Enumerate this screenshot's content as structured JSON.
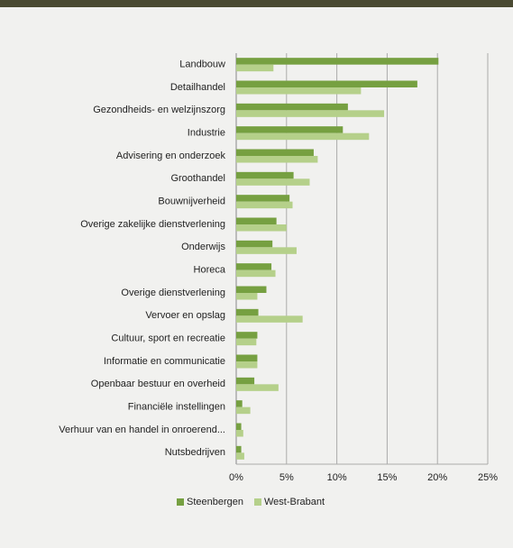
{
  "chart_data": {
    "type": "hbar",
    "categories": [
      "Landbouw",
      "Detailhandel",
      "Gezondheids- en welzijnszorg",
      "Industrie",
      "Advisering en onderzoek",
      "Groothandel",
      "Bouwnijverheid",
      "Overige zakelijke dienstverlening",
      "Onderwijs",
      "Horeca",
      "Overige dienstverlening",
      "Vervoer en opslag",
      "Cultuur, sport en recreatie",
      "Informatie en communicatie",
      "Openbaar bestuur en overheid",
      "Financiële instellingen",
      "Verhuur van en handel in onroerend...",
      "Nutsbedrijven"
    ],
    "series": [
      {
        "name": "Steenbergen",
        "color": "#76a041",
        "values": [
          20.1,
          18.0,
          11.1,
          10.6,
          7.7,
          5.7,
          5.3,
          4.0,
          3.6,
          3.5,
          3.0,
          2.2,
          2.1,
          2.1,
          1.8,
          0.6,
          0.5,
          0.5
        ]
      },
      {
        "name": "West-Brabant",
        "color": "#b5d08a",
        "values": [
          3.7,
          12.4,
          14.7,
          13.2,
          8.1,
          7.3,
          5.6,
          5.0,
          6.0,
          3.9,
          2.1,
          6.6,
          2.0,
          2.1,
          4.2,
          1.4,
          0.7,
          0.8
        ]
      }
    ],
    "xlim": [
      0,
      25
    ],
    "xticks": [
      {
        "value": 0,
        "label": "0%"
      },
      {
        "value": 5,
        "label": "5%"
      },
      {
        "value": 10,
        "label": "10%"
      },
      {
        "value": 15,
        "label": "15%"
      },
      {
        "value": 20,
        "label": "20%"
      },
      {
        "value": 25,
        "label": "25%"
      }
    ],
    "grid": true,
    "legend": "bottom"
  }
}
